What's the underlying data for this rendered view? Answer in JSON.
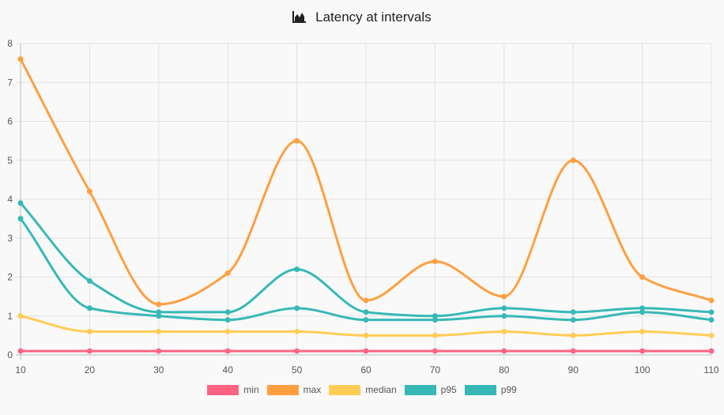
{
  "chart_data": {
    "type": "line",
    "title": "Latency at intervals",
    "title_icon": "area-chart-icon",
    "xlabel": "",
    "ylabel": "",
    "x": [
      10,
      20,
      30,
      40,
      50,
      60,
      70,
      80,
      90,
      100,
      110
    ],
    "xlim": [
      10,
      110
    ],
    "ylim": [
      0,
      8
    ],
    "yticks": [
      0,
      1,
      2,
      3,
      4,
      5,
      6,
      7,
      8
    ],
    "grid": true,
    "legend_position": "bottom",
    "smooth": true,
    "series": [
      {
        "name": "min",
        "color": "#ff6384",
        "values": [
          0.1,
          0.1,
          0.1,
          0.1,
          0.1,
          0.1,
          0.1,
          0.1,
          0.1,
          0.1,
          0.1
        ]
      },
      {
        "name": "max",
        "color": "#ff9f40",
        "values": [
          7.6,
          4.2,
          1.3,
          2.1,
          5.5,
          1.4,
          2.4,
          1.5,
          5.0,
          2.0,
          1.4
        ]
      },
      {
        "name": "median",
        "color": "#ffcd56",
        "values": [
          1.0,
          0.6,
          0.6,
          0.6,
          0.6,
          0.5,
          0.5,
          0.6,
          0.5,
          0.6,
          0.5
        ]
      },
      {
        "name": "p95",
        "color": "#36b9b6",
        "values": [
          3.5,
          1.2,
          1.0,
          0.9,
          1.2,
          0.9,
          0.9,
          1.0,
          0.9,
          1.1,
          0.9
        ]
      },
      {
        "name": "p99",
        "color": "#36b9b6",
        "values": [
          3.9,
          1.9,
          1.1,
          1.1,
          2.2,
          1.1,
          1.0,
          1.2,
          1.1,
          1.2,
          1.1
        ]
      }
    ]
  }
}
